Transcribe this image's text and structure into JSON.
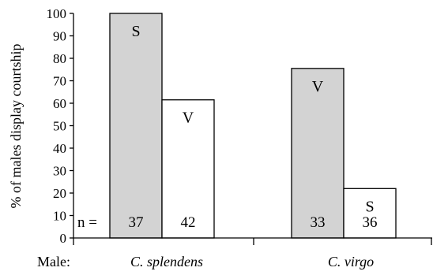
{
  "chart_data": {
    "type": "bar",
    "title": "",
    "ylabel": "% of males display courtship",
    "xlabel_prefix": "Male:",
    "ylim": [
      0,
      100
    ],
    "yticks": [
      0,
      10,
      20,
      30,
      40,
      50,
      60,
      70,
      80,
      90,
      100
    ],
    "n_prefix": "n =",
    "legend": "none",
    "grid": false,
    "groups": [
      {
        "label": "C. splendens",
        "bars": [
          {
            "label": "S",
            "value": 100,
            "n": "37",
            "fill": "#d3d3d3"
          },
          {
            "label": "V",
            "value": 61.5,
            "n": "42",
            "fill": "#ffffff"
          }
        ]
      },
      {
        "label": "C. virgo",
        "bars": [
          {
            "label": "V",
            "value": 75.5,
            "n": "33",
            "fill": "#d3d3d3"
          },
          {
            "label": "S",
            "value": 22,
            "n": "36",
            "fill": "#ffffff"
          }
        ]
      }
    ]
  }
}
